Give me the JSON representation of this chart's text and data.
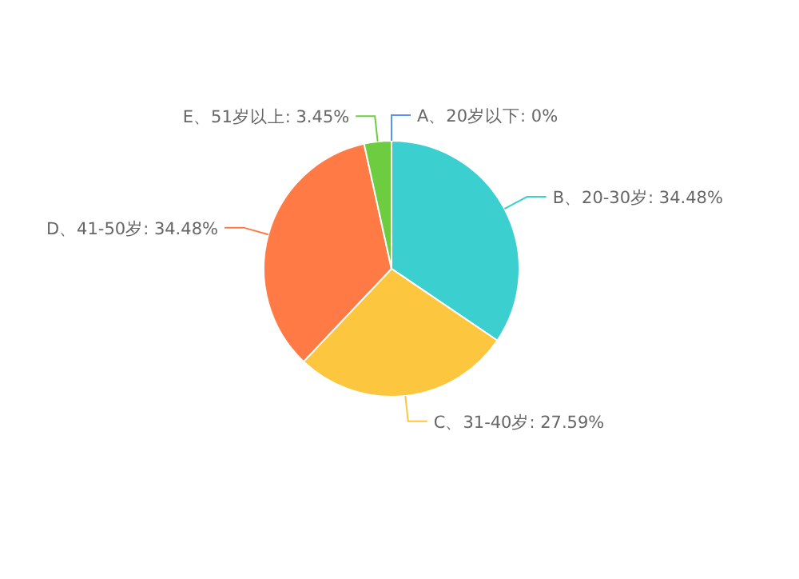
{
  "chart_data": {
    "type": "pie",
    "categories": [
      "A、20岁以下",
      "B、20-30岁",
      "C、31-40岁",
      "D、41-50岁",
      "E、51岁以上"
    ],
    "values": [
      0,
      34.48,
      27.59,
      34.48,
      3.45
    ],
    "value_labels": [
      "0%",
      "34.48%",
      "27.59%",
      "34.48%",
      "3.45%"
    ],
    "colors": [
      "#5b8ff9",
      "#3ccfcf",
      "#fdc63f",
      "#ff7a45",
      "#6dcc3f"
    ]
  }
}
